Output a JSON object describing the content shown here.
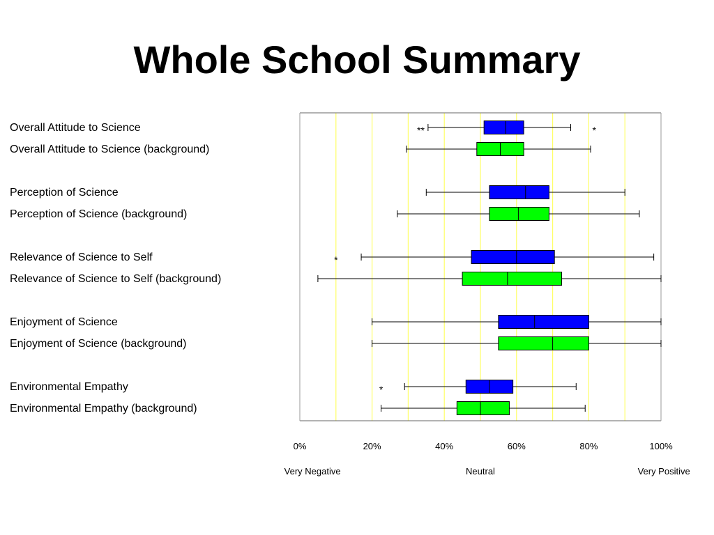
{
  "title": "Whole School Summary",
  "colors": {
    "primary_box": "#0000ff",
    "background_box": "#00ff00",
    "gridline": "#ffff66",
    "border": "#000000"
  },
  "chart_data": {
    "type": "boxplot",
    "orientation": "horizontal",
    "xlim": [
      0,
      100
    ],
    "x_ticks": [
      0,
      20,
      40,
      60,
      80,
      100
    ],
    "x_tick_labels": [
      "0%",
      "20%",
      "40%",
      "60%",
      "80%",
      "100%"
    ],
    "gridlines_x": [
      10,
      20,
      30,
      40,
      50,
      60,
      70,
      80,
      90
    ],
    "grid": true,
    "scale_labels": [
      {
        "text": "Very Negative",
        "x": 3.5
      },
      {
        "text": "Neutral",
        "x": 50
      },
      {
        "text": "Very Positive",
        "x": 100.8
      }
    ],
    "rows": [
      {
        "label": "Overall Attitude to Science",
        "group": "primary",
        "min": 35.5,
        "q1": 51,
        "median": 57,
        "q3": 62,
        "max": 75,
        "outliers": [
          {
            "x": 33.5,
            "text": "**"
          },
          {
            "x": 81.5,
            "text": "*"
          }
        ]
      },
      {
        "label": "Overall Attitude to Science (background)",
        "group": "background",
        "min": 29.5,
        "q1": 49,
        "median": 55.5,
        "q3": 62,
        "max": 80.5,
        "outliers": []
      },
      {
        "label": "Perception of Science",
        "group": "primary",
        "min": 35,
        "q1": 52.5,
        "median": 62.5,
        "q3": 69,
        "max": 90,
        "outliers": []
      },
      {
        "label": "Perception of Science (background)",
        "group": "background",
        "min": 27,
        "q1": 52.5,
        "median": 60.5,
        "q3": 69,
        "max": 94,
        "outliers": []
      },
      {
        "label": "Relevance of Science to Self",
        "group": "primary",
        "min": 17,
        "q1": 47.5,
        "median": 60,
        "q3": 70.5,
        "max": 98,
        "outliers": [
          {
            "x": 10,
            "text": "*"
          }
        ]
      },
      {
        "label": "Relevance of Science to Self (background)",
        "group": "background",
        "min": 5,
        "q1": 45,
        "median": 57.5,
        "q3": 72.5,
        "max": 100,
        "outliers": []
      },
      {
        "label": "Enjoyment of Science",
        "group": "primary",
        "min": 20,
        "q1": 55,
        "median": 65,
        "q3": 80,
        "max": 100,
        "outliers": []
      },
      {
        "label": "Enjoyment of Science (background)",
        "group": "background",
        "min": 20,
        "q1": 55,
        "median": 70,
        "q3": 80,
        "max": 100,
        "outliers": []
      },
      {
        "label": "Environmental Empathy",
        "group": "primary",
        "min": 29,
        "q1": 46,
        "median": 52.5,
        "q3": 59,
        "max": 76.5,
        "outliers": [
          {
            "x": 22.5,
            "text": "*"
          }
        ]
      },
      {
        "label": "Environmental Empathy (background)",
        "group": "background",
        "min": 22.5,
        "q1": 43.5,
        "median": 50,
        "q3": 58,
        "max": 79,
        "outliers": []
      }
    ]
  }
}
